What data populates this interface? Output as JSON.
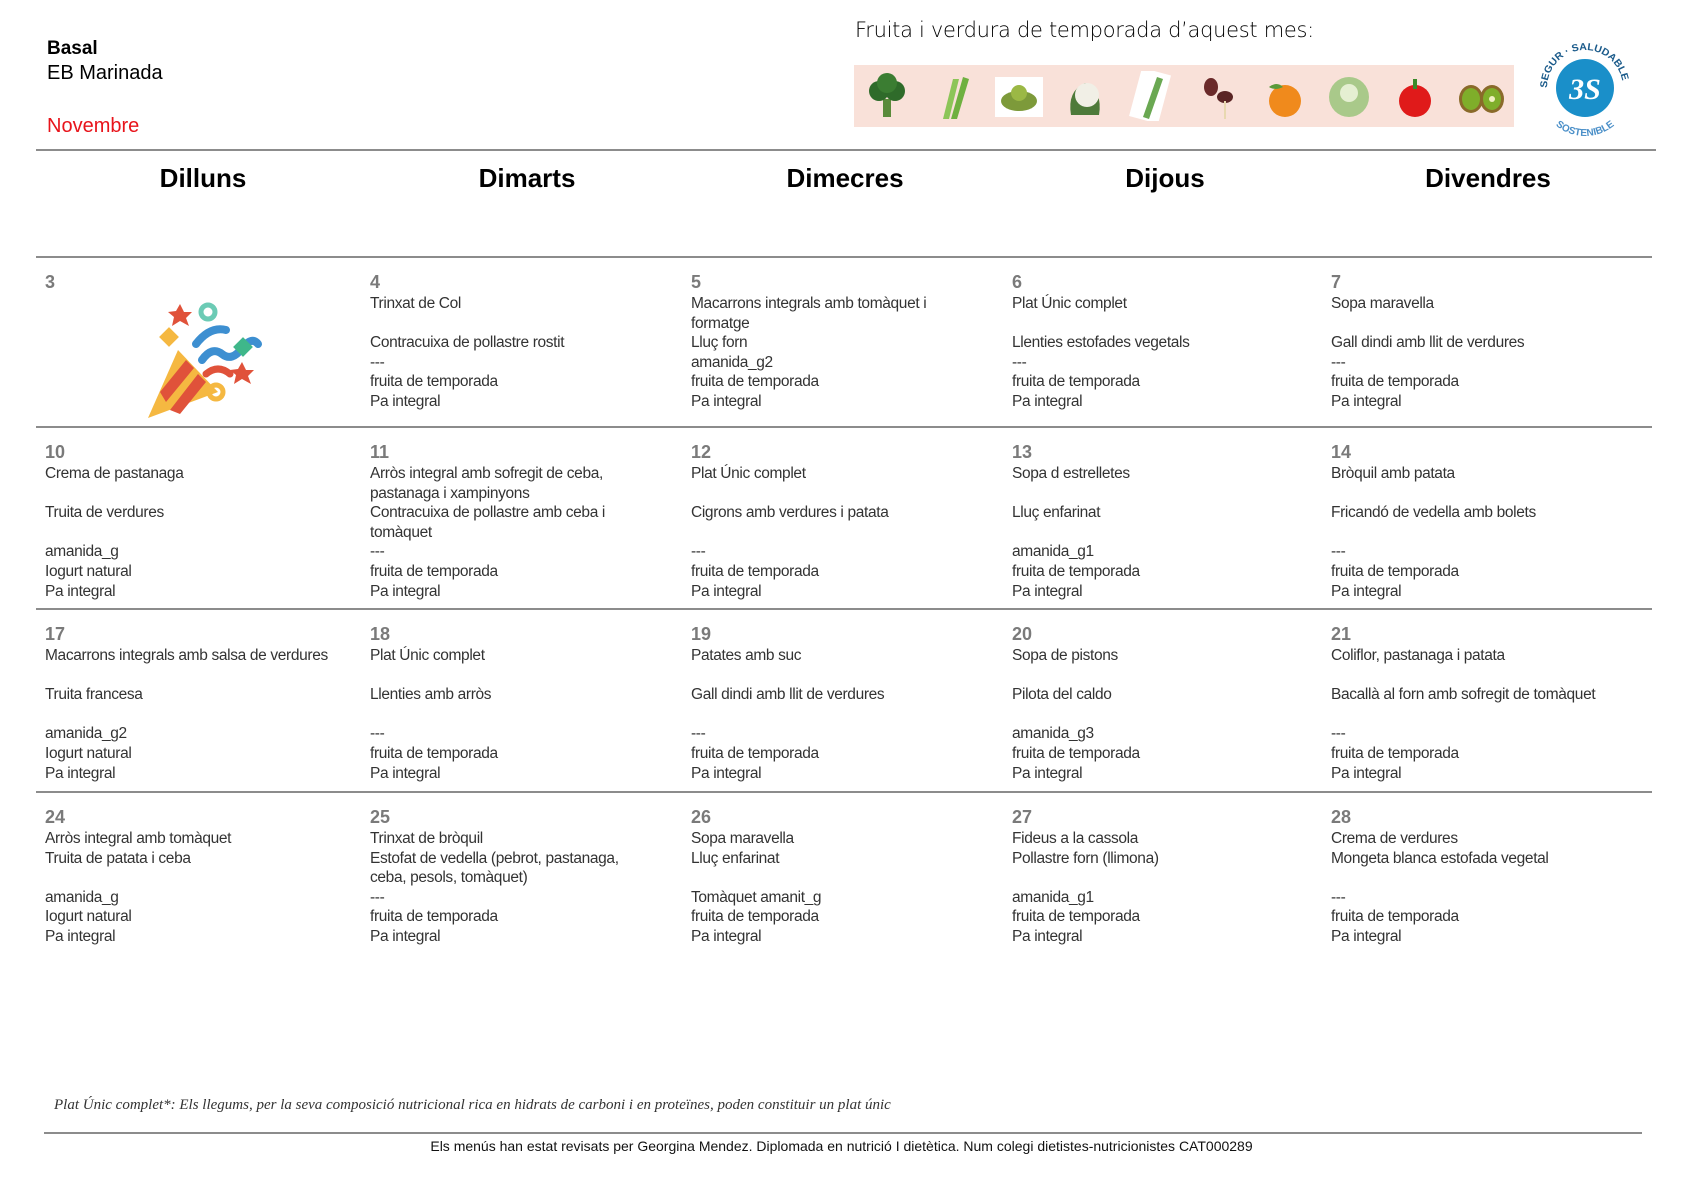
{
  "header": {
    "school_type": "Basal",
    "school_name": "EB Marinada",
    "month": "Novembre",
    "season_title": "Fruita i verdura de temporada d’aquest mes:",
    "season_items": [
      "broccoli-icon",
      "celery-icon",
      "romanesco-icon",
      "cauliflower-icon",
      "leek-icon",
      "mushroom-icon",
      "orange-icon",
      "cabbage-icon",
      "apple-icon",
      "kiwi-icon"
    ],
    "logo": {
      "text_top": "SEGUR · SALUDABLE",
      "text_bottom": "SOSTENIBLE",
      "center": "3S",
      "color": "#1a8fc9"
    }
  },
  "weekdays": [
    "Dilluns",
    "Dimarts",
    "Dimecres",
    "Dijous",
    "Divendres"
  ],
  "weeks": [
    {
      "slots": 6,
      "days": [
        {
          "num": "3",
          "holiday": true,
          "lines": []
        },
        {
          "num": "4",
          "lines": [
            "Trinxat de Col",
            "",
            "Contracuixa de pollastre rostit",
            "---",
            "fruita de temporada",
            "Pa integral"
          ]
        },
        {
          "num": "5",
          "lines": [
            "Macarrons integrals amb tomàquet i",
            "formatge",
            "Lluç forn",
            "amanida_g2",
            "fruita de temporada",
            "Pa integral"
          ]
        },
        {
          "num": "6",
          "lines": [
            "Plat Únic complet",
            "",
            "Llenties estofades vegetals",
            "---",
            "fruita de temporada",
            "Pa integral"
          ]
        },
        {
          "num": "7",
          "lines": [
            "Sopa maravella",
            "",
            "Gall dindi amb llit de verdures",
            "---",
            "fruita de temporada",
            "Pa integral"
          ]
        }
      ]
    },
    {
      "slots": 7,
      "days": [
        {
          "num": "10",
          "lines": [
            "Crema de pastanaga",
            "",
            "Truita de verdures",
            "",
            "amanida_g",
            "Iogurt natural",
            "Pa integral"
          ]
        },
        {
          "num": "11",
          "lines": [
            "Arròs integral amb sofregit de ceba,",
            "pastanaga i xampinyons",
            "Contracuixa de pollastre amb ceba i",
            "tomàquet",
            "---",
            "fruita de temporada",
            "Pa integral"
          ]
        },
        {
          "num": "12",
          "lines": [
            "Plat Únic complet",
            "",
            "Cigrons amb verdures i patata",
            "",
            "---",
            "fruita de temporada",
            "Pa integral"
          ]
        },
        {
          "num": "13",
          "lines": [
            "Sopa d estrelletes",
            "",
            "Lluç enfarinat",
            "",
            "amanida_g1",
            "fruita de temporada",
            "Pa integral"
          ]
        },
        {
          "num": "14",
          "lines": [
            "Bròquil amb patata",
            "",
            "Fricandó de vedella amb bolets",
            "",
            "---",
            "fruita de temporada",
            "Pa integral"
          ]
        }
      ]
    },
    {
      "slots": 7,
      "days": [
        {
          "num": "17",
          "lines": [
            "Macarrons integrals amb salsa de verdures",
            "",
            "Truita francesa",
            "",
            "amanida_g2",
            "Iogurt natural",
            "Pa integral"
          ]
        },
        {
          "num": "18",
          "lines": [
            "Plat Únic complet",
            "",
            "Llenties amb arròs",
            "",
            "---",
            "fruita de temporada",
            "Pa integral"
          ]
        },
        {
          "num": "19",
          "lines": [
            "Patates amb suc",
            "",
            "Gall dindi amb llit de verdures",
            "",
            "---",
            "fruita de temporada",
            "Pa integral"
          ]
        },
        {
          "num": "20",
          "lines": [
            "Sopa de pistons",
            "",
            "Pilota del caldo",
            "",
            "amanida_g3",
            "fruita de temporada",
            "Pa integral"
          ]
        },
        {
          "num": "21",
          "lines": [
            "Coliflor, pastanaga i patata",
            "",
            "Bacallà al forn amb sofregit de tomàquet",
            "",
            "---",
            "fruita de temporada",
            "Pa integral"
          ]
        }
      ]
    },
    {
      "slots": 6,
      "days": [
        {
          "num": "24",
          "lines": [
            "Arròs integral amb tomàquet",
            "Truita de patata i ceba",
            "",
            "amanida_g",
            "Iogurt natural",
            "Pa integral"
          ]
        },
        {
          "num": "25",
          "lines": [
            "Trinxat de bròquil",
            "Estofat de vedella (pebrot, pastanaga,",
            "ceba, pesols, tomàquet)",
            "---",
            "fruita de temporada",
            "Pa integral"
          ]
        },
        {
          "num": "26",
          "lines": [
            "Sopa maravella",
            "Lluç enfarinat",
            "",
            "Tomàquet amanit_g",
            "fruita de temporada",
            "Pa integral"
          ]
        },
        {
          "num": "27",
          "lines": [
            "Fideus a la cassola",
            "Pollastre forn (llimona)",
            "",
            "amanida_g1",
            "fruita de temporada",
            "Pa integral"
          ]
        },
        {
          "num": "28",
          "lines": [
            "Crema de verdures",
            "Mongeta blanca estofada vegetal",
            "",
            "---",
            "fruita de temporada",
            "Pa integral"
          ]
        }
      ]
    }
  ],
  "footnote": "Plat Únic complet*: Els llegums, per la seva composició nutricional rica en hidrats de carboni i en proteïnes, poden constituir un plat únic",
  "credits": "Els menús han estat revisats per Georgina Mendez. Diplomada en nutrició I dietètica. Num colegi dietistes-nutricionistes CAT000289",
  "colors": {
    "month": "#e8141b",
    "day_number": "#7a7a7a",
    "strip_bg": "#f9e1d9",
    "rule": "#8c8c8c"
  }
}
